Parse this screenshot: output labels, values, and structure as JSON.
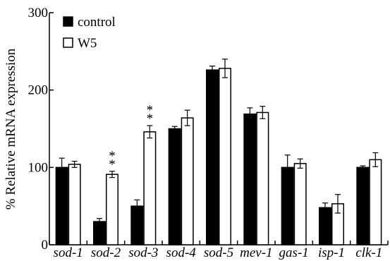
{
  "chart_data": {
    "type": "bar",
    "ylabel": "% Relative mRNA expression",
    "ylim": [
      0,
      300
    ],
    "yticks": [
      0,
      100,
      200,
      300
    ],
    "grid": false,
    "legend_position": "top-left",
    "categories": [
      "sod-1",
      "sod-2",
      "sod-3",
      "sod-4",
      "sod-5",
      "mev-1",
      "gas-1",
      "isp-1",
      "clk-1"
    ],
    "series": [
      {
        "name": "control",
        "color": "#000000",
        "values": [
          100,
          30,
          50,
          150,
          226,
          169,
          100,
          48,
          100
        ],
        "errors": [
          12,
          4,
          8,
          3,
          5,
          8,
          16,
          6,
          2
        ]
      },
      {
        "name": "W5",
        "color": "#ffffff",
        "values": [
          104,
          91,
          146,
          164,
          228,
          171,
          105,
          53,
          110
        ],
        "errors": [
          4,
          4,
          8,
          10,
          12,
          8,
          6,
          12,
          9
        ]
      }
    ],
    "annotations": [
      {
        "category": "sod-2",
        "series": "W5",
        "text": "**"
      },
      {
        "category": "sod-3",
        "series": "W5",
        "text": "**"
      }
    ]
  }
}
